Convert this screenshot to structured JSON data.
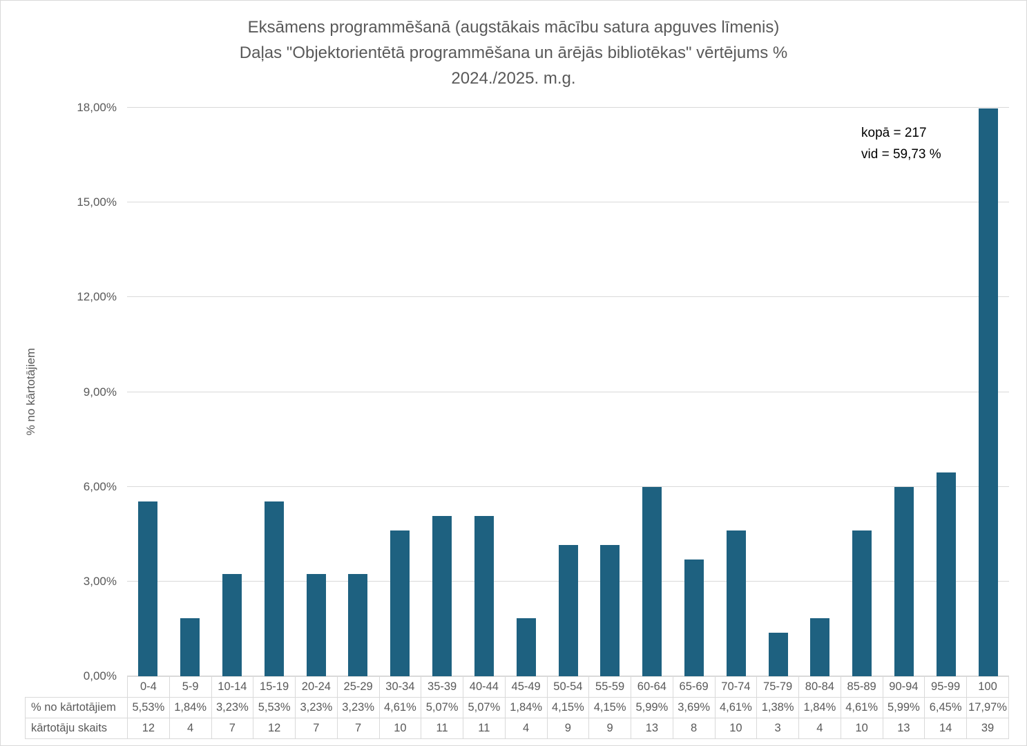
{
  "figure": {
    "background": "#ffffff",
    "border_color": "#d9d9d9"
  },
  "title": {
    "line1": "Eksāmens programmēšanā (augstākais mācību satura apguves līmenis)",
    "line2": "Daļas \"Objektorientētā programmēšana un ārējās bibliotēkas\" vērtējums %",
    "line3": "2024./2025. m.g.",
    "color": "#595959"
  },
  "annotation": {
    "line1": "kopā = 217",
    "line2": "vid = 59,73 %",
    "color": "#000000"
  },
  "y_axis": {
    "title": "% no kārtotājiem",
    "tick_values": [
      0,
      3,
      6,
      9,
      12,
      15,
      18
    ],
    "tick_labels": [
      "0,00%",
      "3,00%",
      "6,00%",
      "9,00%",
      "12,00%",
      "15,00%",
      "18,00%"
    ],
    "label_color": "#595959",
    "gridline_color": "#d9d9d9"
  },
  "chart_data": {
    "type": "bar",
    "title": "Eksāmens programmēšanā (augstākais mācību satura apguves līmenis) Daļas \"Objektorientētā programmēšana un ārējās bibliotēkas\" vērtējums % 2024./2025. m.g.",
    "categories": [
      "0-4",
      "5-9",
      "10-14",
      "15-19",
      "20-24",
      "25-29",
      "30-34",
      "35-39",
      "40-44",
      "45-49",
      "50-54",
      "55-59",
      "60-64",
      "65-69",
      "70-74",
      "75-79",
      "80-84",
      "85-89",
      "90-94",
      "95-99",
      "100"
    ],
    "series": [
      {
        "name": "% no kārtotājiem",
        "values": [
          5.53,
          1.84,
          3.23,
          5.53,
          3.23,
          3.23,
          4.61,
          5.07,
          5.07,
          1.84,
          4.15,
          4.15,
          5.99,
          3.69,
          4.61,
          1.38,
          1.84,
          4.61,
          5.99,
          6.45,
          17.97
        ],
        "labels": [
          "5,53%",
          "1,84%",
          "3,23%",
          "5,53%",
          "3,23%",
          "3,23%",
          "4,61%",
          "5,07%",
          "5,07%",
          "1,84%",
          "4,15%",
          "4,15%",
          "5,99%",
          "3,69%",
          "4,61%",
          "1,38%",
          "1,84%",
          "4,61%",
          "5,99%",
          "6,45%",
          "17,97%"
        ]
      },
      {
        "name": "kārtotāju skaits",
        "values": [
          12,
          4,
          7,
          12,
          7,
          7,
          10,
          11,
          11,
          4,
          9,
          9,
          13,
          8,
          10,
          3,
          4,
          10,
          13,
          14,
          39
        ]
      }
    ],
    "xlabel": "",
    "ylabel": "% no kārtotājiem",
    "ylim": [
      0,
      18
    ],
    "grid": true,
    "legend_position": "none",
    "bar_color": "#1e6180",
    "kopa_total": 217,
    "vid_average_percent": "59,73"
  }
}
